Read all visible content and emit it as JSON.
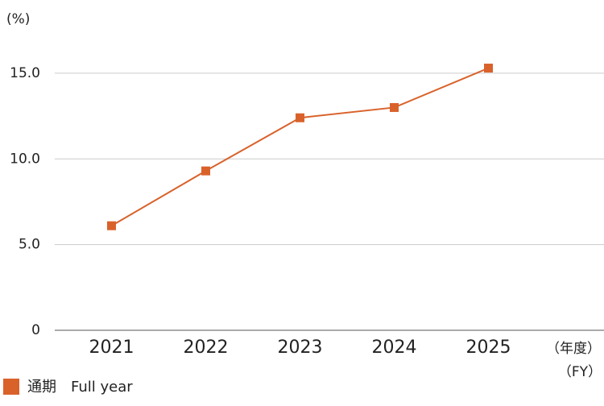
{
  "chart_data": {
    "type": "line",
    "ylabel": "(%)",
    "xlabel": [
      "（年度）",
      "（FY）"
    ],
    "categories": [
      "2021",
      "2022",
      "2023",
      "2024",
      "2025"
    ],
    "series": [
      {
        "name": "通期　Full year",
        "color": "#d9622b",
        "values": [
          6.1,
          9.3,
          12.4,
          13.0,
          15.3
        ]
      }
    ],
    "ylim": [
      0,
      16.5
    ],
    "yticks": [
      0,
      {
        "value": 5,
        "label": "5.0"
      },
      {
        "value": 10,
        "label": "10.0"
      },
      {
        "value": 15,
        "label": "15.0"
      }
    ],
    "grid": true,
    "legend": "bottom-left"
  }
}
